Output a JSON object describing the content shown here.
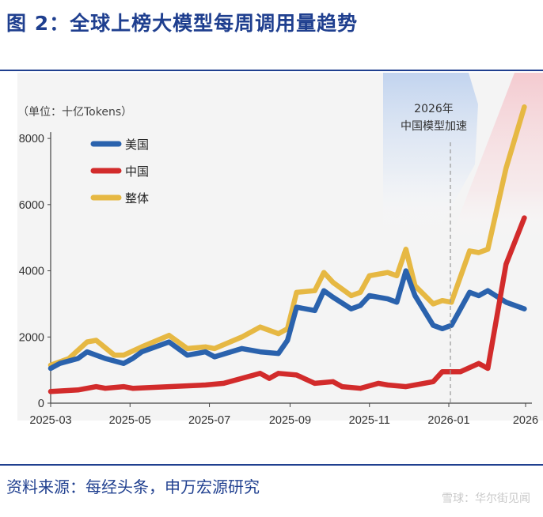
{
  "title": "图 2：全球上榜大模型每周调用量趋势",
  "source": "资料来源：每经头条，申万宏源研究",
  "watermark": "雪球：华尔街见闻",
  "chart_data": {
    "type": "line",
    "unit_label": "（单位：十亿Tokens）",
    "ylim": [
      0,
      8600
    ],
    "yticks": [
      0,
      2000,
      4000,
      6000,
      8000
    ],
    "x_range": [
      "2025-03",
      "2026-03"
    ],
    "xticks": [
      "2025-03",
      "2025-05",
      "2025-07",
      "2025-09",
      "2025-11",
      "2026-01",
      "2026"
    ],
    "legend_position": "top-left",
    "grid": false,
    "annotation": {
      "lines": [
        "2026年",
        "中国模型加速"
      ],
      "at": "2026-01"
    },
    "series": [
      {
        "name": "美国",
        "color": "#2a62ad",
        "points": [
          [
            "2025-03-01",
            1050
          ],
          [
            "2025-03-08",
            1200
          ],
          [
            "2025-03-22",
            1350
          ],
          [
            "2025-03-29",
            1550
          ],
          [
            "2025-04-12",
            1350
          ],
          [
            "2025-04-26",
            1200
          ],
          [
            "2025-05-03",
            1350
          ],
          [
            "2025-05-10",
            1550
          ],
          [
            "2025-05-31",
            1850
          ],
          [
            "2025-06-14",
            1450
          ],
          [
            "2025-06-28",
            1550
          ],
          [
            "2025-07-05",
            1400
          ],
          [
            "2025-07-26",
            1650
          ],
          [
            "2025-08-09",
            1550
          ],
          [
            "2025-08-23",
            1500
          ],
          [
            "2025-08-30",
            1900
          ],
          [
            "2025-09-06",
            2900
          ],
          [
            "2025-09-20",
            2800
          ],
          [
            "2025-09-27",
            3400
          ],
          [
            "2025-10-04",
            3200
          ],
          [
            "2025-10-18",
            2850
          ],
          [
            "2025-10-25",
            2950
          ],
          [
            "2025-11-01",
            3250
          ],
          [
            "2025-11-15",
            3150
          ],
          [
            "2025-11-22",
            3050
          ],
          [
            "2025-11-29",
            4000
          ],
          [
            "2025-12-06",
            3250
          ],
          [
            "2025-12-20",
            2350
          ],
          [
            "2025-12-27",
            2250
          ],
          [
            "2026-01-03",
            2350
          ],
          [
            "2026-01-17",
            3350
          ],
          [
            "2026-01-24",
            3250
          ],
          [
            "2026-01-31",
            3400
          ],
          [
            "2026-02-14",
            3050
          ],
          [
            "2026-02-28",
            2850
          ]
        ]
      },
      {
        "name": "中国",
        "color": "#d22b2b",
        "points": [
          [
            "2025-03-01",
            350
          ],
          [
            "2025-03-22",
            400
          ],
          [
            "2025-04-05",
            500
          ],
          [
            "2025-04-12",
            450
          ],
          [
            "2025-04-26",
            500
          ],
          [
            "2025-05-03",
            450
          ],
          [
            "2025-05-31",
            500
          ],
          [
            "2025-06-28",
            550
          ],
          [
            "2025-07-12",
            600
          ],
          [
            "2025-08-09",
            900
          ],
          [
            "2025-08-16",
            750
          ],
          [
            "2025-08-23",
            900
          ],
          [
            "2025-09-06",
            850
          ],
          [
            "2025-09-20",
            600
          ],
          [
            "2025-10-04",
            650
          ],
          [
            "2025-10-11",
            500
          ],
          [
            "2025-10-25",
            450
          ],
          [
            "2025-11-08",
            600
          ],
          [
            "2025-11-15",
            550
          ],
          [
            "2025-11-29",
            500
          ],
          [
            "2025-12-20",
            650
          ],
          [
            "2025-12-27",
            950
          ],
          [
            "2026-01-10",
            950
          ],
          [
            "2026-01-24",
            1200
          ],
          [
            "2026-01-31",
            1050
          ],
          [
            "2026-02-14",
            4200
          ],
          [
            "2026-02-28",
            5600
          ]
        ]
      },
      {
        "name": "整体",
        "color": "#e6b843",
        "points": [
          [
            "2025-03-01",
            1150
          ],
          [
            "2025-03-15",
            1350
          ],
          [
            "2025-03-29",
            1850
          ],
          [
            "2025-04-05",
            1900
          ],
          [
            "2025-04-19",
            1450
          ],
          [
            "2025-04-26",
            1450
          ],
          [
            "2025-05-10",
            1700
          ],
          [
            "2025-05-31",
            2050
          ],
          [
            "2025-06-14",
            1650
          ],
          [
            "2025-06-28",
            1700
          ],
          [
            "2025-07-05",
            1650
          ],
          [
            "2025-07-26",
            2000
          ],
          [
            "2025-08-09",
            2300
          ],
          [
            "2025-08-23",
            2100
          ],
          [
            "2025-08-30",
            2250
          ],
          [
            "2025-09-06",
            3350
          ],
          [
            "2025-09-20",
            3400
          ],
          [
            "2025-09-27",
            3950
          ],
          [
            "2025-10-04",
            3650
          ],
          [
            "2025-10-18",
            3250
          ],
          [
            "2025-10-25",
            3350
          ],
          [
            "2025-11-01",
            3850
          ],
          [
            "2025-11-15",
            3950
          ],
          [
            "2025-11-22",
            3850
          ],
          [
            "2025-11-29",
            4650
          ],
          [
            "2025-12-06",
            3550
          ],
          [
            "2025-12-20",
            3000
          ],
          [
            "2025-12-27",
            3100
          ],
          [
            "2026-01-03",
            3050
          ],
          [
            "2026-01-17",
            4600
          ],
          [
            "2026-01-24",
            4550
          ],
          [
            "2026-01-31",
            4650
          ],
          [
            "2026-02-14",
            7100
          ],
          [
            "2026-02-28",
            8950
          ]
        ]
      }
    ]
  }
}
